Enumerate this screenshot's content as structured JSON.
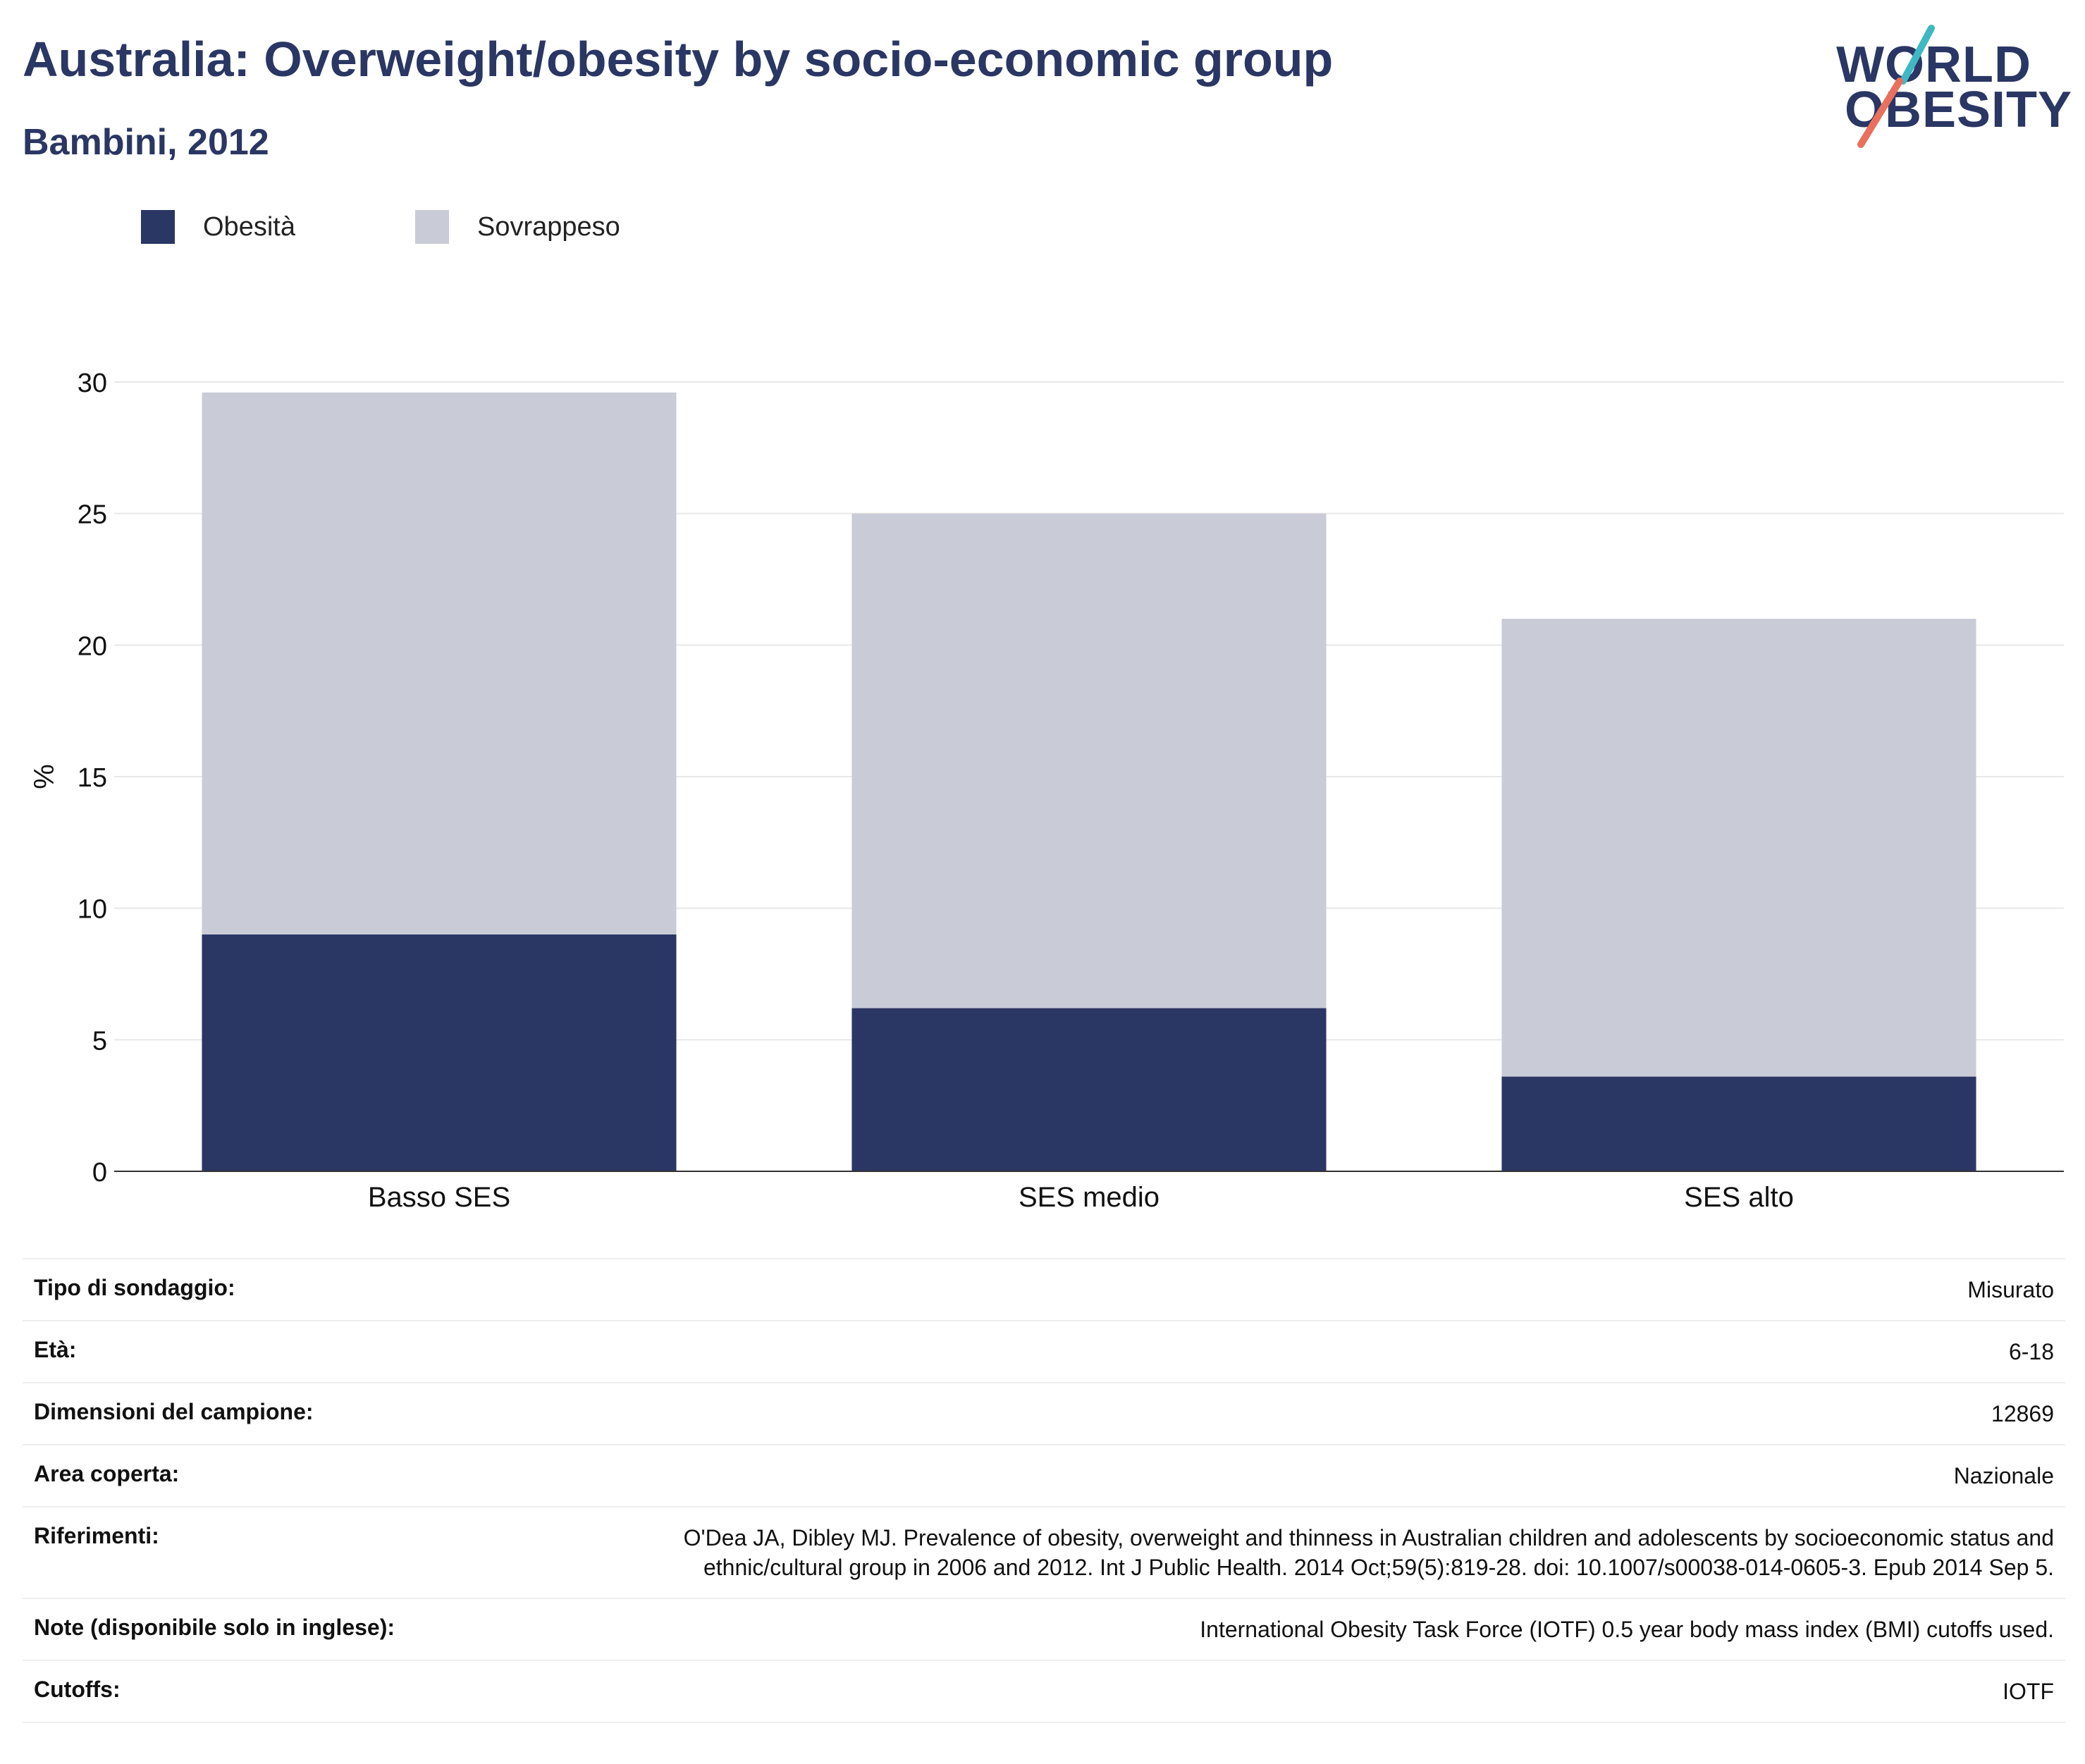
{
  "header": {
    "title": "Australia: Overweight/obesity by socio-economic group",
    "subtitle": "Bambini, 2012"
  },
  "logo": {
    "line1": "WORLD",
    "line2": "OBESITY",
    "slash_colors": [
      "#3fb8c3",
      "#e8705d"
    ]
  },
  "legend": [
    {
      "label": "Obesità",
      "color": "#2a3663"
    },
    {
      "label": "Sovrappeso",
      "color": "#c9cbd7"
    }
  ],
  "chart_data": {
    "type": "bar",
    "stacked": true,
    "categories": [
      "Basso SES",
      "SES medio",
      "SES alto"
    ],
    "series": [
      {
        "name": "Obesità",
        "values": [
          9.0,
          6.2,
          3.6
        ],
        "color": "#2a3663"
      },
      {
        "name": "Sovrappeso",
        "values": [
          20.6,
          18.8,
          17.4
        ],
        "color": "#c9cbd7"
      }
    ],
    "totals": [
      29.6,
      25.0,
      21.0
    ],
    "ylabel": "%",
    "ylim": [
      0,
      30
    ],
    "yticks": [
      0,
      5,
      10,
      15,
      20,
      25,
      30
    ],
    "grid": true,
    "legend_position": "top-left"
  },
  "info": [
    {
      "key": "Tipo di sondaggio:",
      "value": "Misurato"
    },
    {
      "key": "Età:",
      "value": "6-18"
    },
    {
      "key": "Dimensioni del campione:",
      "value": "12869"
    },
    {
      "key": "Area coperta:",
      "value": "Nazionale"
    },
    {
      "key": "Riferimenti:",
      "value": "O'Dea JA, Dibley MJ. Prevalence of obesity, overweight and thinness in Australian children and adolescents by socioeconomic status and ethnic/cultural group in 2006 and 2012. Int J Public Health. 2014 Oct;59(5):819-28. doi: 10.1007/s00038-014-0605-3. Epub 2014 Sep 5."
    },
    {
      "key": "Note (disponibile solo in inglese):",
      "value": "International Obesity Task Force (IOTF) 0.5 year body mass index (BMI) cutoffs used."
    },
    {
      "key": "Cutoffs:",
      "value": "IOTF"
    }
  ]
}
